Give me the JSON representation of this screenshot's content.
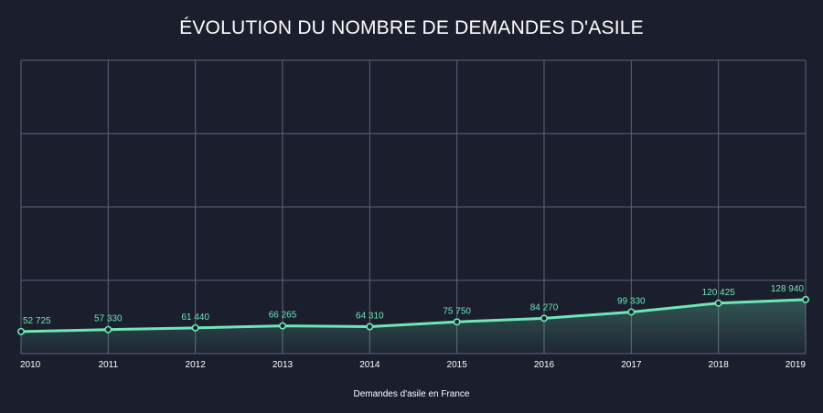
{
  "chart_data": {
    "type": "area",
    "title": "ÉVOLUTION DU NOMBRE DE DEMANDES D'ASILE",
    "xlabel": "Demandes d'asile en France",
    "ylabel": "",
    "categories": [
      "2010",
      "2011",
      "2012",
      "2013",
      "2014",
      "2015",
      "2016",
      "2017",
      "2018",
      "2019"
    ],
    "series": [
      {
        "name": "",
        "values": [
          52725,
          57330,
          61440,
          66265,
          64310,
          75750,
          84270,
          99330,
          120425,
          128940
        ],
        "value_labels": [
          "52 725",
          "57 330",
          "61 440",
          "66 265",
          "64 310",
          "75 750",
          "84 270",
          "99 330",
          "120 425",
          "128 940"
        ]
      }
    ],
    "ylim": [
      0,
      700000
    ],
    "grid": true,
    "legend": "none",
    "colors": {
      "background": "#1b1e2d",
      "line": "#6ee7b7",
      "label": "#6ee7b7",
      "grid": "#5f6478",
      "text": "#ffffff"
    }
  }
}
